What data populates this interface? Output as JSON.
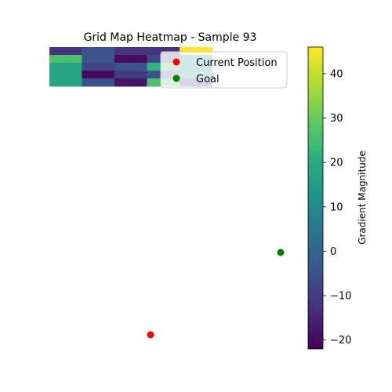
{
  "chart_data": {
    "type": "heatmap",
    "title": "Grid Map Heatmap - Sample 93",
    "grid": {
      "values": [
        [
          -12,
          -5,
          -12,
          -12,
          46
        ],
        [
          26,
          -5,
          -20,
          -8,
          10
        ],
        [
          18,
          -8,
          -5,
          22,
          10
        ],
        [
          18,
          -20,
          -10,
          -5,
          10
        ],
        [
          18,
          -5,
          -18,
          26,
          -14
        ]
      ]
    },
    "markers": [
      {
        "label": "Current Position",
        "color": "#ff0000"
      },
      {
        "label": "Goal",
        "color": "#008000"
      }
    ],
    "legend": {
      "placement": "top-right"
    },
    "colorbar": {
      "label": "Gradient Magnitude",
      "range": [
        -22,
        46
      ],
      "ticks": [
        -20,
        -10,
        0,
        10,
        20,
        30,
        40
      ],
      "colormap": "viridis"
    },
    "axes_visible": false
  }
}
